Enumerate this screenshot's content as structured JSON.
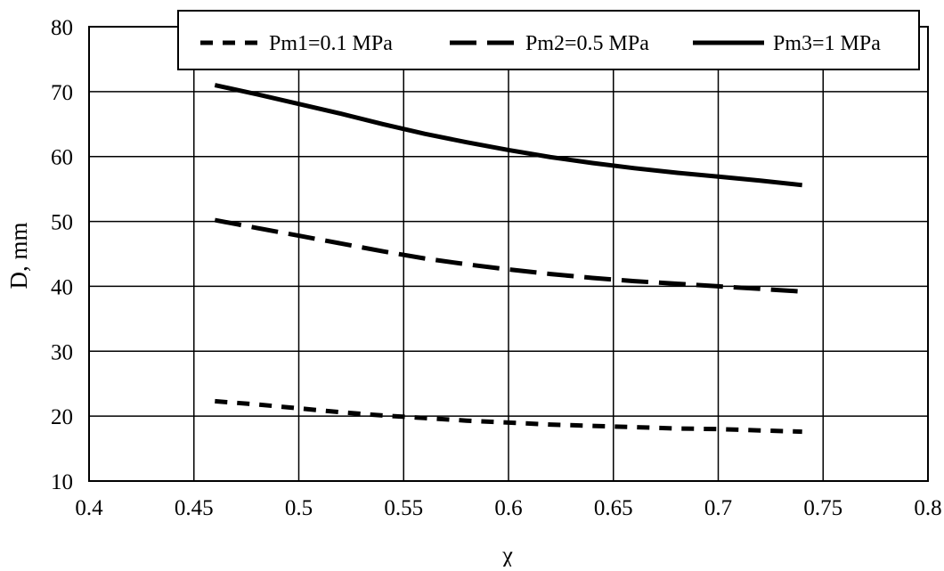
{
  "chart_data": {
    "type": "line",
    "title": "",
    "xlabel": "χ",
    "ylabel": "D, mm",
    "xlim": [
      0.4,
      0.8
    ],
    "ylim": [
      10,
      80
    ],
    "x_ticks": [
      "0.4",
      "0.45",
      "0.5",
      "0.55",
      "0.6",
      "0.65",
      "0.7",
      "0.75",
      "0.8"
    ],
    "y_ticks": [
      "10",
      "20",
      "30",
      "40",
      "50",
      "60",
      "70",
      "80"
    ],
    "grid": true,
    "legend_position": "top-right",
    "line_color": "#000000",
    "x": [
      0.46,
      0.48,
      0.5,
      0.52,
      0.54,
      0.56,
      0.58,
      0.6,
      0.62,
      0.64,
      0.66,
      0.68,
      0.7,
      0.72,
      0.74
    ],
    "series": [
      {
        "name": "Pm1=0.1 MPa",
        "style": "short-dash",
        "values": [
          22.3,
          21.8,
          21.2,
          20.6,
          20.1,
          19.7,
          19.3,
          19.0,
          18.7,
          18.5,
          18.3,
          18.1,
          18.0,
          17.8,
          17.6
        ]
      },
      {
        "name": "Pm2=0.5 MPa",
        "style": "long-dash",
        "values": [
          50.2,
          49.0,
          47.8,
          46.6,
          45.4,
          44.3,
          43.4,
          42.6,
          41.9,
          41.3,
          40.8,
          40.4,
          40.0,
          39.6,
          39.2
        ]
      },
      {
        "name": "Pm3=1 MPa",
        "style": "solid",
        "values": [
          71.0,
          69.6,
          68.1,
          66.6,
          65.0,
          63.5,
          62.2,
          61.0,
          59.9,
          59.0,
          58.2,
          57.5,
          56.9,
          56.3,
          55.6
        ]
      }
    ]
  }
}
